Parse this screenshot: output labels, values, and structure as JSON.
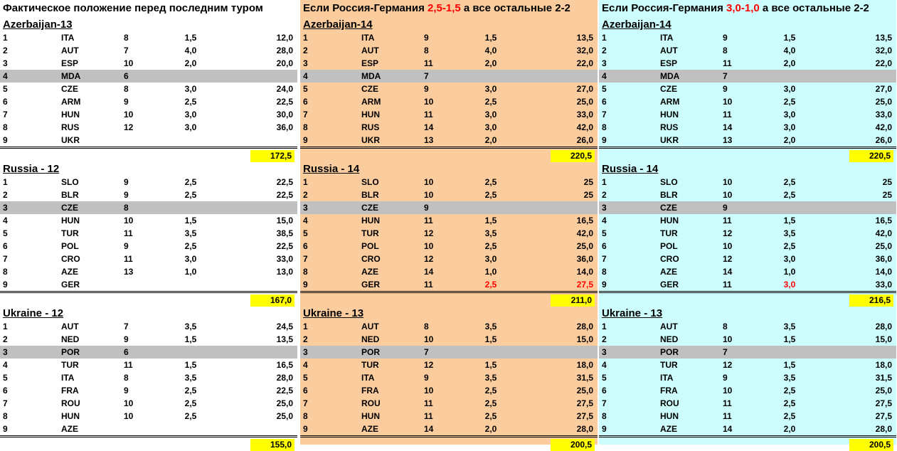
{
  "columns": [
    {
      "header": {
        "before": "Фактическое положение перед последним туром",
        "score": "",
        "after": ""
      },
      "groups": [
        {
          "title": "Azerbaijan-13",
          "total": "172,5",
          "rows": [
            {
              "n": "1",
              "team": "ITA",
              "rank": "8",
              "pts": "1,5",
              "score": "12,0"
            },
            {
              "n": "2",
              "team": "AUT",
              "rank": "7",
              "pts": "4,0",
              "score": "28,0"
            },
            {
              "n": "3",
              "team": "ESP",
              "rank": "10",
              "pts": "2,0",
              "score": "20,0"
            },
            {
              "n": "4",
              "team": "MDA",
              "rank": "6",
              "pts": "",
              "score": "",
              "hl": true
            },
            {
              "n": "5",
              "team": "CZE",
              "rank": "8",
              "pts": "3,0",
              "score": "24,0"
            },
            {
              "n": "6",
              "team": "ARM",
              "rank": "9",
              "pts": "2,5",
              "score": "22,5"
            },
            {
              "n": "7",
              "team": "HUN",
              "rank": "10",
              "pts": "3,0",
              "score": "30,0"
            },
            {
              "n": "8",
              "team": "RUS",
              "rank": "12",
              "pts": "3,0",
              "score": "36,0"
            },
            {
              "n": "9",
              "team": "UKR",
              "rank": "",
              "pts": "",
              "score": ""
            }
          ]
        },
        {
          "title": "Russia - 12",
          "total": "167,0",
          "rows": [
            {
              "n": "1",
              "team": "SLO",
              "rank": "9",
              "pts": "2,5",
              "score": "22,5"
            },
            {
              "n": "2",
              "team": "BLR",
              "rank": "9",
              "pts": "2,5",
              "score": "22,5"
            },
            {
              "n": "3",
              "team": "CZE",
              "rank": "8",
              "pts": "",
              "score": "",
              "hl": true
            },
            {
              "n": "4",
              "team": "HUN",
              "rank": "10",
              "pts": "1,5",
              "score": "15,0"
            },
            {
              "n": "5",
              "team": "TUR",
              "rank": "11",
              "pts": "3,5",
              "score": "38,5"
            },
            {
              "n": "6",
              "team": "POL",
              "rank": "9",
              "pts": "2,5",
              "score": "22,5"
            },
            {
              "n": "7",
              "team": "CRO",
              "rank": "11",
              "pts": "3,0",
              "score": "33,0"
            },
            {
              "n": "8",
              "team": "AZE",
              "rank": "13",
              "pts": "1,0",
              "score": "13,0"
            },
            {
              "n": "9",
              "team": "GER",
              "rank": "",
              "pts": "",
              "score": ""
            }
          ]
        },
        {
          "title": "Ukraine - 12",
          "total": "155,0",
          "rows": [
            {
              "n": "1",
              "team": "AUT",
              "rank": "7",
              "pts": "3,5",
              "score": "24,5"
            },
            {
              "n": "2",
              "team": "NED",
              "rank": "9",
              "pts": "1,5",
              "score": "13,5"
            },
            {
              "n": "3",
              "team": "POR",
              "rank": "6",
              "pts": "",
              "score": "",
              "hl": true
            },
            {
              "n": "4",
              "team": "TUR",
              "rank": "11",
              "pts": "1,5",
              "score": "16,5"
            },
            {
              "n": "5",
              "team": "ITA",
              "rank": "8",
              "pts": "3,5",
              "score": "28,0"
            },
            {
              "n": "6",
              "team": "FRA",
              "rank": "9",
              "pts": "2,5",
              "score": "22,5"
            },
            {
              "n": "7",
              "team": "ROU",
              "rank": "10",
              "pts": "2,5",
              "score": "25,0"
            },
            {
              "n": "8",
              "team": "HUN",
              "rank": "10",
              "pts": "2,5",
              "score": "25,0"
            },
            {
              "n": "9",
              "team": "AZE",
              "rank": "",
              "pts": "",
              "score": ""
            }
          ]
        }
      ]
    },
    {
      "header": {
        "before": "Если Россия-Германия ",
        "score": "2,5-1,5",
        "after": " а все остальные 2-2"
      },
      "groups": [
        {
          "title": "Azerbaijan-14",
          "total": "220,5",
          "rows": [
            {
              "n": "1",
              "team": "ITA",
              "rank": "9",
              "pts": "1,5",
              "score": "13,5"
            },
            {
              "n": "2",
              "team": "AUT",
              "rank": "8",
              "pts": "4,0",
              "score": "32,0"
            },
            {
              "n": "3",
              "team": "ESP",
              "rank": "11",
              "pts": "2,0",
              "score": "22,0"
            },
            {
              "n": "4",
              "team": "MDA",
              "rank": "7",
              "pts": "",
              "score": "",
              "hl": true
            },
            {
              "n": "5",
              "team": "CZE",
              "rank": "9",
              "pts": "3,0",
              "score": "27,0"
            },
            {
              "n": "6",
              "team": "ARM",
              "rank": "10",
              "pts": "2,5",
              "score": "25,0"
            },
            {
              "n": "7",
              "team": "HUN",
              "rank": "11",
              "pts": "3,0",
              "score": "33,0"
            },
            {
              "n": "8",
              "team": "RUS",
              "rank": "14",
              "pts": "3,0",
              "score": "42,0"
            },
            {
              "n": "9",
              "team": "UKR",
              "rank": "13",
              "pts": "2,0",
              "score": "26,0"
            }
          ]
        },
        {
          "title": "Russia - 14",
          "total": "211,0",
          "rows": [
            {
              "n": "1",
              "team": "SLO",
              "rank": "10",
              "pts": "2,5",
              "score": "25"
            },
            {
              "n": "2",
              "team": "BLR",
              "rank": "10",
              "pts": "2,5",
              "score": "25"
            },
            {
              "n": "3",
              "team": "CZE",
              "rank": "9",
              "pts": "",
              "score": "",
              "hl": true
            },
            {
              "n": "4",
              "team": "HUN",
              "rank": "11",
              "pts": "1,5",
              "score": "16,5"
            },
            {
              "n": "5",
              "team": "TUR",
              "rank": "12",
              "pts": "3,5",
              "score": "42,0"
            },
            {
              "n": "6",
              "team": "POL",
              "rank": "10",
              "pts": "2,5",
              "score": "25,0"
            },
            {
              "n": "7",
              "team": "CRO",
              "rank": "12",
              "pts": "3,0",
              "score": "36,0"
            },
            {
              "n": "8",
              "team": "AZE",
              "rank": "14",
              "pts": "1,0",
              "score": "14,0"
            },
            {
              "n": "9",
              "team": "GER",
              "rank": "11",
              "pts": "2,5",
              "score": "27,5",
              "red": true
            }
          ]
        },
        {
          "title": "Ukraine - 13",
          "total": "200,5",
          "rows": [
            {
              "n": "1",
              "team": "AUT",
              "rank": "8",
              "pts": "3,5",
              "score": "28,0"
            },
            {
              "n": "2",
              "team": "NED",
              "rank": "10",
              "pts": "1,5",
              "score": "15,0"
            },
            {
              "n": "3",
              "team": "POR",
              "rank": "7",
              "pts": "",
              "score": "",
              "hl": true
            },
            {
              "n": "4",
              "team": "TUR",
              "rank": "12",
              "pts": "1,5",
              "score": "18,0"
            },
            {
              "n": "5",
              "team": "ITA",
              "rank": "9",
              "pts": "3,5",
              "score": "31,5"
            },
            {
              "n": "6",
              "team": "FRA",
              "rank": "10",
              "pts": "2,5",
              "score": "25,0"
            },
            {
              "n": "7",
              "team": "ROU",
              "rank": "11",
              "pts": "2,5",
              "score": "27,5"
            },
            {
              "n": "8",
              "team": "HUN",
              "rank": "11",
              "pts": "2,5",
              "score": "27,5"
            },
            {
              "n": "9",
              "team": "AZE",
              "rank": "14",
              "pts": "2,0",
              "score": "28,0"
            }
          ]
        }
      ]
    },
    {
      "header": {
        "before": "Если Россия-Германия ",
        "score": "3,0-1,0",
        "after": " а все остальные 2-2"
      },
      "groups": [
        {
          "title": "Azerbaijan-14",
          "total": "220,5",
          "rows": [
            {
              "n": "1",
              "team": "ITA",
              "rank": "9",
              "pts": "1,5",
              "score": "13,5"
            },
            {
              "n": "2",
              "team": "AUT",
              "rank": "8",
              "pts": "4,0",
              "score": "32,0"
            },
            {
              "n": "3",
              "team": "ESP",
              "rank": "11",
              "pts": "2,0",
              "score": "22,0"
            },
            {
              "n": "4",
              "team": "MDA",
              "rank": "7",
              "pts": "",
              "score": "",
              "hl": true
            },
            {
              "n": "5",
              "team": "CZE",
              "rank": "9",
              "pts": "3,0",
              "score": "27,0"
            },
            {
              "n": "6",
              "team": "ARM",
              "rank": "10",
              "pts": "2,5",
              "score": "25,0"
            },
            {
              "n": "7",
              "team": "HUN",
              "rank": "11",
              "pts": "3,0",
              "score": "33,0"
            },
            {
              "n": "8",
              "team": "RUS",
              "rank": "14",
              "pts": "3,0",
              "score": "42,0"
            },
            {
              "n": "9",
              "team": "UKR",
              "rank": "13",
              "pts": "2,0",
              "score": "26,0"
            }
          ]
        },
        {
          "title": "Russia - 14",
          "total": "216,5",
          "rows": [
            {
              "n": "1",
              "team": "SLO",
              "rank": "10",
              "pts": "2,5",
              "score": "25"
            },
            {
              "n": "2",
              "team": "BLR",
              "rank": "10",
              "pts": "2,5",
              "score": "25"
            },
            {
              "n": "3",
              "team": "CZE",
              "rank": "9",
              "pts": "",
              "score": "",
              "hl": true
            },
            {
              "n": "4",
              "team": "HUN",
              "rank": "11",
              "pts": "1,5",
              "score": "16,5"
            },
            {
              "n": "5",
              "team": "TUR",
              "rank": "12",
              "pts": "3,5",
              "score": "42,0"
            },
            {
              "n": "6",
              "team": "POL",
              "rank": "10",
              "pts": "2,5",
              "score": "25,0"
            },
            {
              "n": "7",
              "team": "CRO",
              "rank": "12",
              "pts": "3,0",
              "score": "36,0"
            },
            {
              "n": "8",
              "team": "AZE",
              "rank": "14",
              "pts": "1,0",
              "score": "14,0"
            },
            {
              "n": "9",
              "team": "GER",
              "rank": "11",
              "pts": "3,0",
              "score": "33,0",
              "redpts": true
            }
          ]
        },
        {
          "title": "Ukraine - 13",
          "total": "200,5",
          "rows": [
            {
              "n": "1",
              "team": "AUT",
              "rank": "8",
              "pts": "3,5",
              "score": "28,0"
            },
            {
              "n": "2",
              "team": "NED",
              "rank": "10",
              "pts": "1,5",
              "score": "15,0"
            },
            {
              "n": "3",
              "team": "POR",
              "rank": "7",
              "pts": "",
              "score": "",
              "hl": true
            },
            {
              "n": "4",
              "team": "TUR",
              "rank": "12",
              "pts": "1,5",
              "score": "18,0"
            },
            {
              "n": "5",
              "team": "ITA",
              "rank": "9",
              "pts": "3,5",
              "score": "31,5"
            },
            {
              "n": "6",
              "team": "FRA",
              "rank": "10",
              "pts": "2,5",
              "score": "25,0"
            },
            {
              "n": "7",
              "team": "ROU",
              "rank": "11",
              "pts": "2,5",
              "score": "27,5"
            },
            {
              "n": "8",
              "team": "HUN",
              "rank": "11",
              "pts": "2,5",
              "score": "27,5"
            },
            {
              "n": "9",
              "team": "AZE",
              "rank": "14",
              "pts": "2,0",
              "score": "28,0"
            }
          ]
        }
      ]
    }
  ]
}
